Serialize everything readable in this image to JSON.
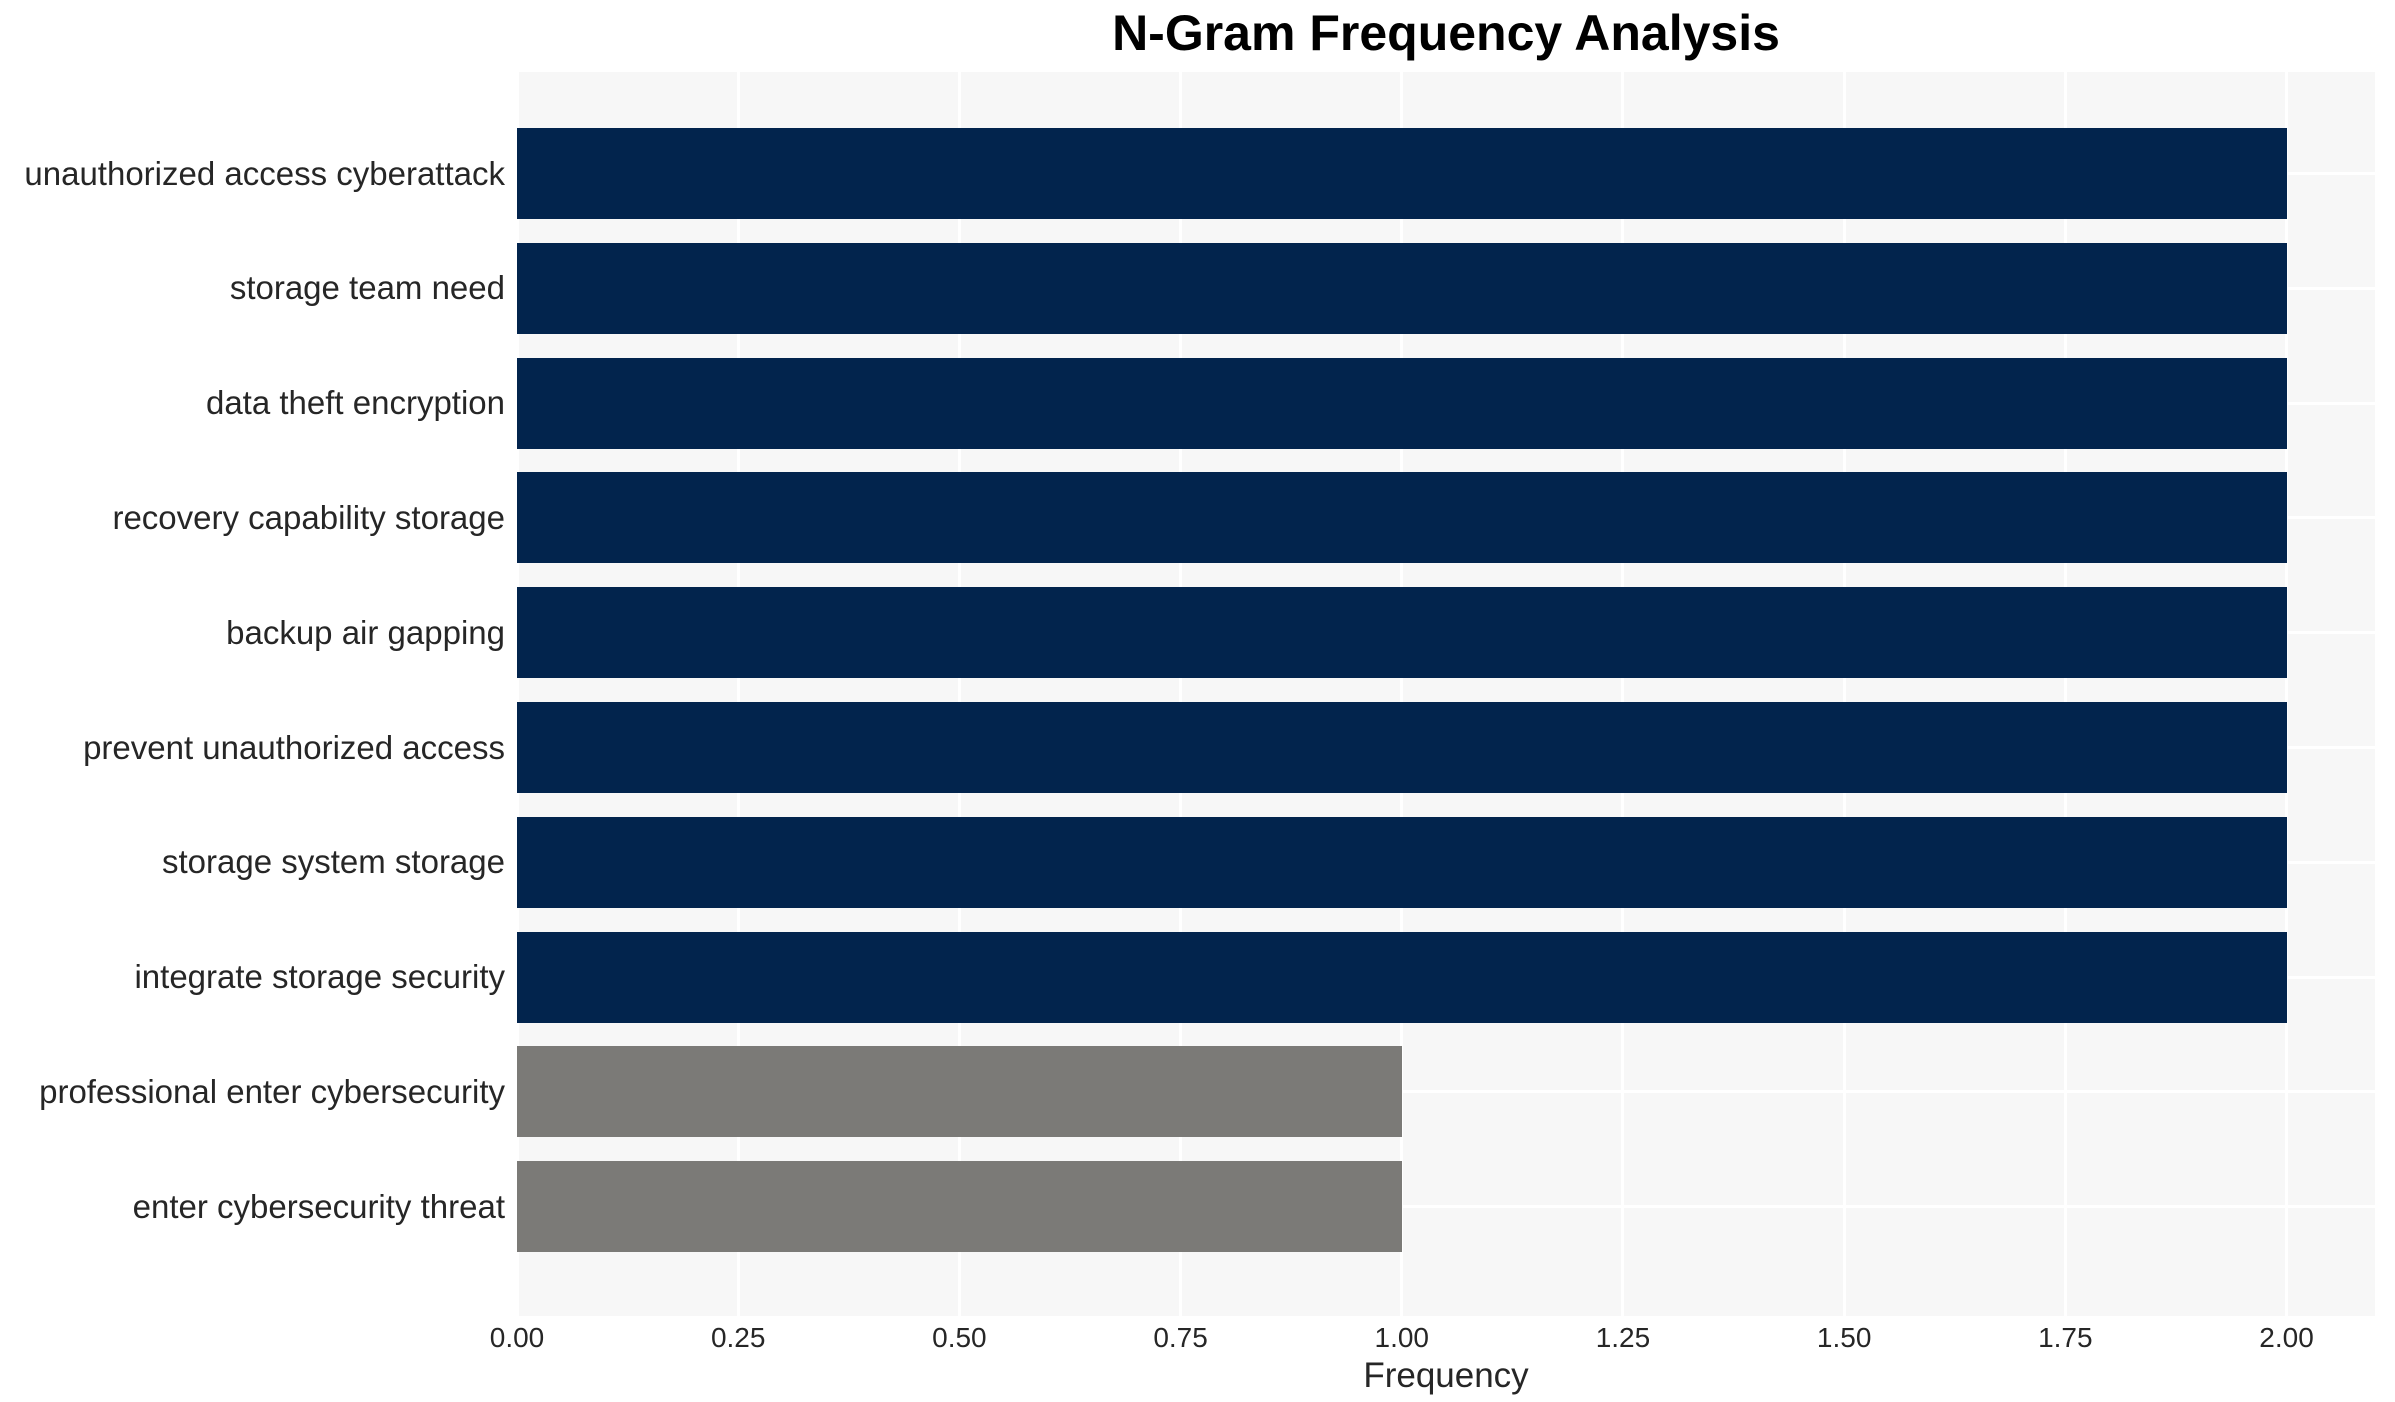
{
  "chart_data": {
    "type": "bar",
    "orientation": "horizontal",
    "title": "N-Gram Frequency Analysis",
    "xlabel": "Frequency",
    "ylabel": "",
    "categories": [
      "unauthorized access cyberattack",
      "storage team need",
      "data theft encryption",
      "recovery capability storage",
      "backup air gapping",
      "prevent unauthorized access",
      "storage system storage",
      "integrate storage security",
      "professional enter cybersecurity",
      "enter cybersecurity threat"
    ],
    "values": [
      2,
      2,
      2,
      2,
      2,
      2,
      2,
      2,
      1,
      1
    ],
    "bar_colors": [
      "#02244d",
      "#02244d",
      "#02244d",
      "#02244d",
      "#02244d",
      "#02244d",
      "#02244d",
      "#02244d",
      "#7b7a77",
      "#7b7a77"
    ],
    "xlim": [
      0,
      2.1
    ],
    "xtick_values": [
      0.0,
      0.25,
      0.5,
      0.75,
      1.0,
      1.25,
      1.5,
      1.75,
      2.0
    ],
    "xtick_labels": [
      "0.00",
      "0.25",
      "0.50",
      "0.75",
      "1.00",
      "1.25",
      "1.50",
      "1.75",
      "2.00"
    ],
    "grid": true,
    "legend": false,
    "colors": {
      "bar_primary": "#02244d",
      "bar_secondary": "#7b7a77",
      "plot_background": "#f7f7f7",
      "gridline": "#ffffff",
      "title_text": "#000000",
      "tick_text": "#262626"
    }
  }
}
